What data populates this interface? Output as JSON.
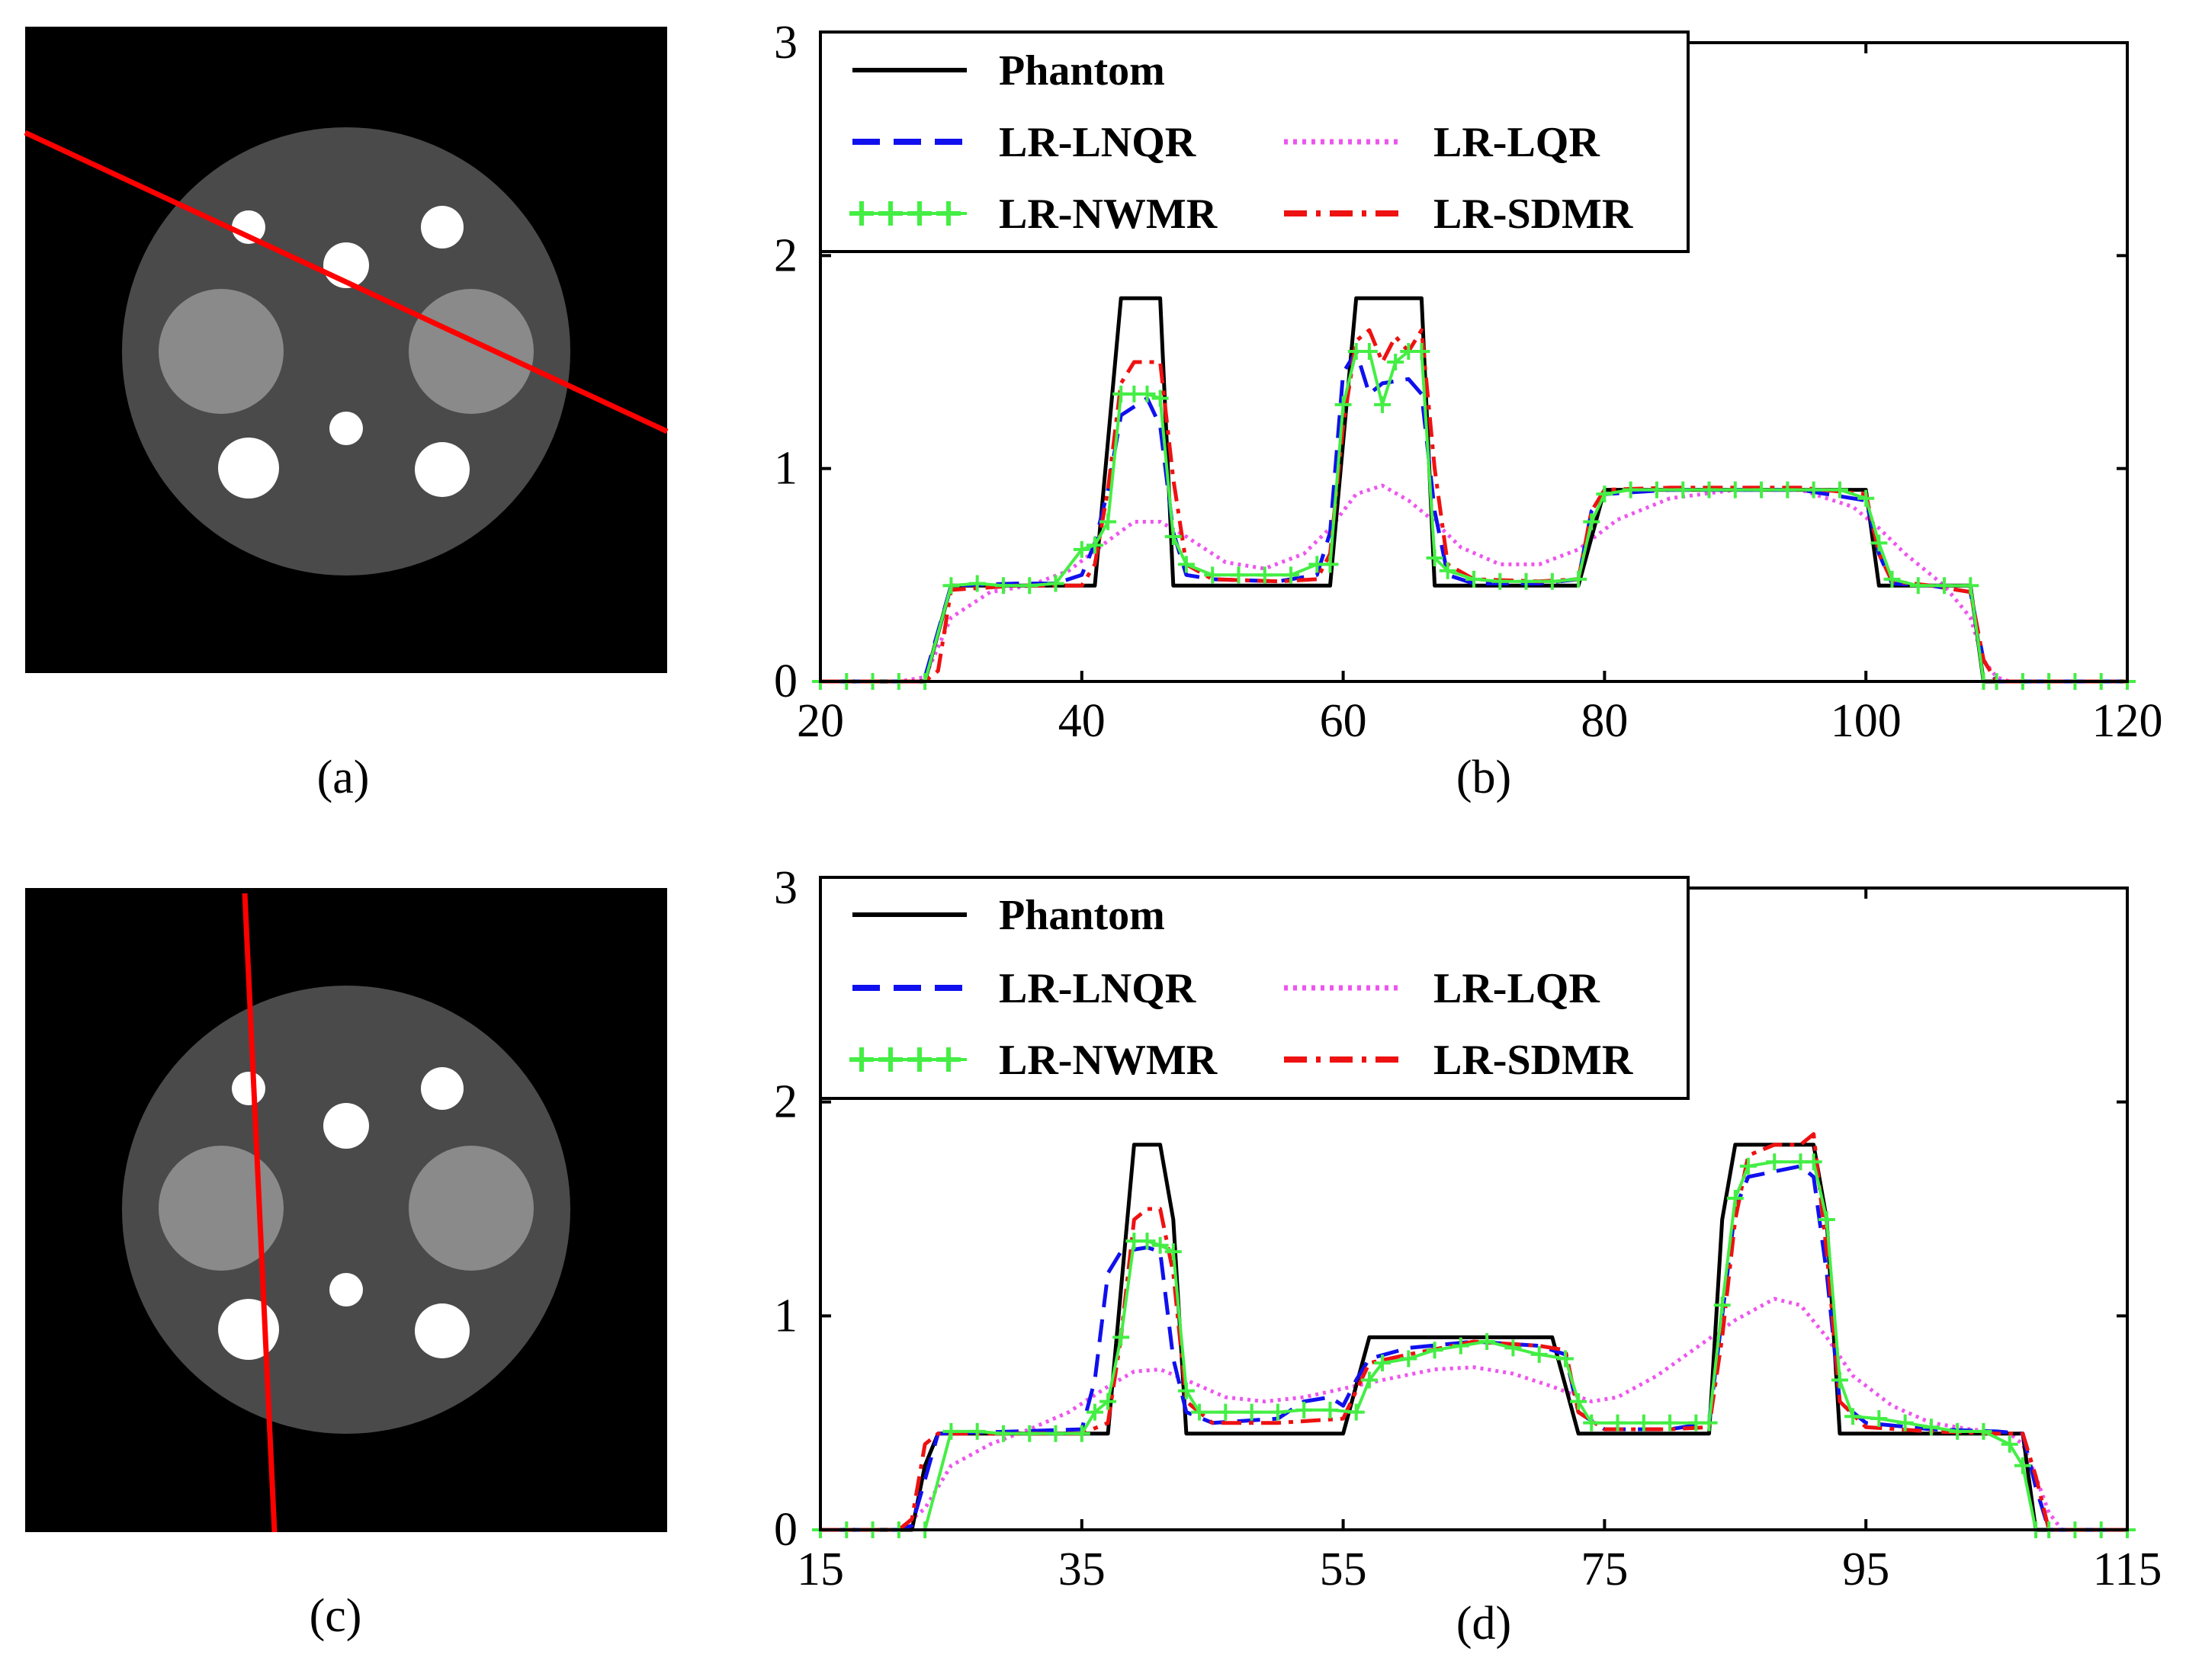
{
  "panel_labels": {
    "a": "(a)",
    "b": "(b)",
    "c": "(c)",
    "d": "(d)"
  },
  "legend": {
    "phantom": "Phantom",
    "lnqr": "LR-LNQR",
    "lqr": "LR-LQR",
    "nwmr": "LR-NWMR",
    "sdmr": "LR-SDMR"
  },
  "colors": {
    "phantom": "#000000",
    "lnqr": "#1010ee",
    "lqr": "#ee55ee",
    "nwmr": "#44ee44",
    "sdmr": "#ee1111",
    "cut_line": "#ff0000"
  },
  "phantom_images": {
    "a": {
      "cut": "oblique line across upper region",
      "label": "(a)"
    },
    "c": {
      "cut": "near-vertical line through left inserts",
      "label": "(c)"
    }
  },
  "chart_data": [
    {
      "id": "b",
      "type": "line",
      "xlim": [
        20,
        120
      ],
      "ylim": [
        0,
        3
      ],
      "xticks": [
        20,
        40,
        60,
        80,
        100,
        120
      ],
      "yticks": [
        0,
        1,
        2,
        3
      ],
      "series": [
        {
          "name": "Phantom",
          "key": "phantom",
          "x": [
            20,
            28,
            30,
            41,
            43,
            46,
            47,
            59,
            61,
            66,
            67,
            78,
            80,
            100,
            101,
            108,
            109,
            120
          ],
          "y": [
            0,
            0,
            0.45,
            0.45,
            1.8,
            1.8,
            0.45,
            0.45,
            1.8,
            1.8,
            0.45,
            0.45,
            0.9,
            0.9,
            0.45,
            0.45,
            0,
            0
          ]
        },
        {
          "name": "LR-LNQR",
          "key": "lnqr",
          "x": [
            20,
            27,
            28,
            30,
            35,
            38,
            40,
            41,
            42,
            43,
            45,
            46,
            47,
            48,
            50,
            55,
            58,
            59,
            60,
            61,
            62,
            63,
            65,
            66,
            67,
            68,
            70,
            75,
            78,
            79,
            80,
            85,
            90,
            95,
            100,
            101,
            102,
            105,
            108,
            109,
            110,
            120
          ],
          "y": [
            0,
            0,
            0.02,
            0.45,
            0.46,
            0.46,
            0.5,
            0.65,
            0.9,
            1.25,
            1.33,
            1.2,
            0.7,
            0.5,
            0.48,
            0.47,
            0.5,
            0.7,
            1.45,
            1.55,
            1.35,
            1.4,
            1.42,
            1.35,
            0.8,
            0.5,
            0.46,
            0.46,
            0.48,
            0.8,
            0.88,
            0.9,
            0.9,
            0.9,
            0.85,
            0.6,
            0.46,
            0.45,
            0.42,
            0.1,
            0,
            0
          ]
        },
        {
          "name": "LR-LQR",
          "key": "lqr",
          "x": [
            20,
            26,
            28,
            30,
            33,
            36,
            39,
            42,
            44,
            46,
            48,
            51,
            54,
            57,
            59,
            61,
            63,
            65,
            67,
            69,
            72,
            75,
            78,
            81,
            85,
            90,
            95,
            99,
            101,
            103,
            106,
            108,
            109,
            110,
            111,
            120
          ],
          "y": [
            0,
            0,
            0.02,
            0.3,
            0.42,
            0.45,
            0.52,
            0.66,
            0.75,
            0.75,
            0.68,
            0.56,
            0.53,
            0.6,
            0.72,
            0.88,
            0.92,
            0.85,
            0.75,
            0.63,
            0.55,
            0.55,
            0.62,
            0.76,
            0.86,
            0.9,
            0.9,
            0.82,
            0.72,
            0.6,
            0.45,
            0.3,
            0.1,
            0.02,
            0,
            0
          ]
        },
        {
          "name": "LR-NWMR",
          "key": "nwmr",
          "x": [
            20,
            22,
            24,
            26,
            28,
            30,
            32,
            34,
            36,
            38,
            40,
            41,
            42,
            43,
            44,
            45,
            46,
            47,
            48,
            50,
            52,
            54,
            56,
            58,
            59,
            60,
            61,
            62,
            63,
            64,
            65,
            66,
            67,
            68,
            70,
            72,
            74,
            76,
            78,
            79,
            80,
            82,
            84,
            86,
            88,
            90,
            92,
            94,
            96,
            98,
            100,
            101,
            102,
            104,
            106,
            108,
            109,
            110,
            112,
            114,
            116,
            118,
            120
          ],
          "y": [
            0,
            0,
            0,
            0,
            0,
            0.45,
            0.46,
            0.45,
            0.45,
            0.46,
            0.62,
            0.64,
            0.75,
            1.35,
            1.35,
            1.35,
            1.33,
            0.68,
            0.55,
            0.5,
            0.5,
            0.5,
            0.5,
            0.55,
            0.55,
            1.3,
            1.55,
            1.55,
            1.3,
            1.5,
            1.55,
            1.55,
            0.58,
            0.52,
            0.48,
            0.47,
            0.47,
            0.47,
            0.48,
            0.75,
            0.88,
            0.9,
            0.9,
            0.9,
            0.9,
            0.9,
            0.9,
            0.9,
            0.9,
            0.9,
            0.86,
            0.65,
            0.48,
            0.45,
            0.45,
            0.45,
            0,
            0,
            0,
            0,
            0,
            0,
            0
          ]
        },
        {
          "name": "LR-SDMR",
          "key": "sdmr",
          "x": [
            20,
            28,
            29,
            30,
            35,
            40,
            41,
            42,
            43,
            44,
            46,
            47,
            48,
            50,
            55,
            58,
            59,
            60,
            61,
            62,
            63,
            64,
            65,
            66,
            67,
            68,
            70,
            75,
            78,
            79,
            80,
            85,
            90,
            95,
            100,
            101,
            102,
            105,
            108,
            109,
            110,
            120
          ],
          "y": [
            0,
            0,
            0.05,
            0.43,
            0.45,
            0.45,
            0.55,
            0.9,
            1.4,
            1.5,
            1.5,
            0.95,
            0.55,
            0.48,
            0.47,
            0.48,
            0.6,
            1.2,
            1.6,
            1.65,
            1.5,
            1.62,
            1.55,
            1.65,
            1.0,
            0.55,
            0.48,
            0.47,
            0.48,
            0.8,
            0.9,
            0.91,
            0.91,
            0.91,
            0.88,
            0.6,
            0.47,
            0.45,
            0.42,
            0.1,
            0,
            0
          ]
        }
      ]
    },
    {
      "id": "d",
      "type": "line",
      "xlim": [
        15,
        115
      ],
      "ylim": [
        0,
        3
      ],
      "xticks": [
        15,
        35,
        55,
        75,
        95,
        115
      ],
      "yticks": [
        0,
        1,
        2,
        3
      ],
      "series": [
        {
          "name": "Phantom",
          "key": "phantom",
          "x": [
            15,
            22,
            23,
            24,
            37,
            39,
            41,
            42,
            43,
            55,
            57,
            71,
            73,
            83,
            84,
            85,
            91,
            92,
            93,
            107,
            108,
            115
          ],
          "y": [
            0,
            0,
            0.3,
            0.45,
            0.45,
            1.8,
            1.8,
            1.45,
            0.45,
            0.45,
            0.9,
            0.9,
            0.45,
            0.45,
            1.45,
            1.8,
            1.8,
            1.45,
            0.45,
            0.45,
            0,
            0
          ]
        },
        {
          "name": "LR-LNQR",
          "key": "lnqr",
          "x": [
            15,
            21,
            22,
            24,
            30,
            35,
            36,
            37,
            38,
            40,
            41,
            42,
            43,
            45,
            50,
            52,
            54,
            55,
            56,
            57,
            60,
            65,
            70,
            72,
            73,
            75,
            80,
            83,
            84,
            85,
            86,
            90,
            91,
            92,
            93,
            95,
            100,
            105,
            107,
            108,
            109,
            115
          ],
          "y": [
            0,
            0,
            0.02,
            0.45,
            0.46,
            0.47,
            0.7,
            1.2,
            1.3,
            1.32,
            1.3,
            0.8,
            0.55,
            0.5,
            0.52,
            0.6,
            0.62,
            0.58,
            0.7,
            0.8,
            0.85,
            0.88,
            0.86,
            0.82,
            0.55,
            0.47,
            0.47,
            0.5,
            1.0,
            1.5,
            1.65,
            1.7,
            1.65,
            1.2,
            0.6,
            0.5,
            0.47,
            0.46,
            0.45,
            0.2,
            0,
            0
          ]
        },
        {
          "name": "LR-LQR",
          "key": "lqr",
          "x": [
            15,
            21,
            23,
            25,
            28,
            31,
            34,
            37,
            39,
            41,
            43,
            46,
            49,
            52,
            55,
            58,
            62,
            65,
            68,
            71,
            74,
            76,
            79,
            82,
            85,
            88,
            90,
            92,
            94,
            97,
            100,
            103,
            106,
            107,
            108,
            109,
            110,
            115
          ],
          "y": [
            0,
            0,
            0.1,
            0.3,
            0.4,
            0.47,
            0.55,
            0.67,
            0.74,
            0.75,
            0.7,
            0.62,
            0.6,
            0.62,
            0.66,
            0.7,
            0.75,
            0.76,
            0.73,
            0.67,
            0.6,
            0.62,
            0.72,
            0.85,
            0.98,
            1.08,
            1.05,
            0.9,
            0.72,
            0.58,
            0.5,
            0.47,
            0.45,
            0.4,
            0.25,
            0.08,
            0,
            0
          ]
        },
        {
          "name": "LR-NWMR",
          "key": "nwmr",
          "x": [
            15,
            17,
            19,
            21,
            23,
            25,
            27,
            29,
            31,
            33,
            35,
            36,
            37,
            38,
            39,
            40,
            41,
            42,
            43,
            44,
            46,
            48,
            50,
            52,
            54,
            56,
            57,
            58,
            60,
            62,
            64,
            66,
            68,
            70,
            72,
            73,
            74,
            76,
            78,
            80,
            82,
            83,
            84,
            85,
            86,
            88,
            90,
            91,
            92,
            93,
            94,
            96,
            98,
            100,
            102,
            104,
            106,
            107,
            108,
            109,
            111,
            113,
            115
          ],
          "y": [
            0,
            0,
            0,
            0,
            0,
            0.46,
            0.46,
            0.45,
            0.45,
            0.45,
            0.45,
            0.55,
            0.6,
            0.9,
            1.35,
            1.35,
            1.33,
            1.3,
            0.65,
            0.55,
            0.55,
            0.55,
            0.55,
            0.56,
            0.56,
            0.55,
            0.7,
            0.78,
            0.8,
            0.84,
            0.86,
            0.88,
            0.85,
            0.82,
            0.8,
            0.6,
            0.5,
            0.5,
            0.5,
            0.5,
            0.5,
            0.5,
            1.05,
            1.55,
            1.7,
            1.72,
            1.72,
            1.72,
            1.45,
            0.7,
            0.53,
            0.52,
            0.5,
            0.48,
            0.46,
            0.46,
            0.4,
            0.3,
            0,
            0,
            0,
            0,
            0
          ]
        },
        {
          "name": "LR-SDMR",
          "key": "sdmr",
          "x": [
            15,
            21,
            22,
            23,
            24,
            30,
            35,
            37,
            38,
            39,
            40,
            41,
            42,
            43,
            45,
            50,
            55,
            56,
            57,
            60,
            65,
            70,
            72,
            73,
            75,
            80,
            83,
            84,
            85,
            86,
            88,
            90,
            91,
            92,
            93,
            95,
            100,
            105,
            107,
            108,
            109,
            115
          ],
          "y": [
            0,
            0,
            0.05,
            0.4,
            0.45,
            0.45,
            0.45,
            0.5,
            0.9,
            1.45,
            1.5,
            1.5,
            1.2,
            0.6,
            0.5,
            0.5,
            0.52,
            0.65,
            0.78,
            0.82,
            0.88,
            0.86,
            0.84,
            0.55,
            0.47,
            0.47,
            0.48,
            0.9,
            1.45,
            1.75,
            1.8,
            1.8,
            1.85,
            1.3,
            0.6,
            0.48,
            0.46,
            0.45,
            0.45,
            0.25,
            0,
            0
          ]
        }
      ]
    }
  ]
}
